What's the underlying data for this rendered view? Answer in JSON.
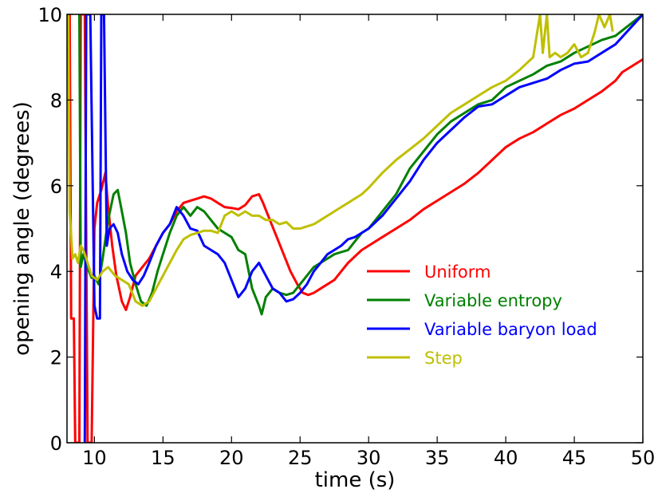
{
  "chart_data": {
    "type": "line",
    "xlabel": "time (s)",
    "ylabel": "opening angle (degrees)",
    "xlim": [
      8,
      50
    ],
    "ylim": [
      0,
      10
    ],
    "xticks": [
      10,
      15,
      20,
      25,
      30,
      35,
      40,
      45,
      50
    ],
    "yticks": [
      0,
      2,
      4,
      6,
      8,
      10
    ],
    "grid": false,
    "legend_position": "center-right",
    "series": [
      {
        "name": "Uniform",
        "color": "#ff0000",
        "points": [
          [
            8.2,
            10
          ],
          [
            8.3,
            2.9
          ],
          [
            8.5,
            2.9
          ],
          [
            8.6,
            0
          ],
          [
            8.9,
            0
          ],
          [
            9.0,
            10
          ],
          [
            9.3,
            10
          ],
          [
            9.5,
            0
          ],
          [
            9.8,
            0
          ],
          [
            10.0,
            5.0
          ],
          [
            10.2,
            5.6
          ],
          [
            10.5,
            5.9
          ],
          [
            10.8,
            6.3
          ],
          [
            11.0,
            5.5
          ],
          [
            11.3,
            4.6
          ],
          [
            11.6,
            3.9
          ],
          [
            12.0,
            3.3
          ],
          [
            12.3,
            3.1
          ],
          [
            12.6,
            3.4
          ],
          [
            13.0,
            3.9
          ],
          [
            13.5,
            4.1
          ],
          [
            14,
            4.3
          ],
          [
            14.5,
            4.6
          ],
          [
            15,
            4.9
          ],
          [
            15.5,
            5.1
          ],
          [
            16,
            5.4
          ],
          [
            16.5,
            5.6
          ],
          [
            17,
            5.65
          ],
          [
            17.5,
            5.7
          ],
          [
            18,
            5.75
          ],
          [
            18.5,
            5.7
          ],
          [
            19,
            5.6
          ],
          [
            19.5,
            5.5
          ],
          [
            20,
            5.48
          ],
          [
            20.5,
            5.45
          ],
          [
            21,
            5.55
          ],
          [
            21.5,
            5.75
          ],
          [
            22,
            5.8
          ],
          [
            22.3,
            5.6
          ],
          [
            22.8,
            5.2
          ],
          [
            23.3,
            4.8
          ],
          [
            23.8,
            4.4
          ],
          [
            24.3,
            4.0
          ],
          [
            24.8,
            3.7
          ],
          [
            25.2,
            3.5
          ],
          [
            25.6,
            3.45
          ],
          [
            26,
            3.5
          ],
          [
            26.5,
            3.6
          ],
          [
            27,
            3.7
          ],
          [
            27.5,
            3.8
          ],
          [
            28,
            4.0
          ],
          [
            28.5,
            4.2
          ],
          [
            29,
            4.35
          ],
          [
            29.5,
            4.5
          ],
          [
            30,
            4.6
          ],
          [
            31,
            4.8
          ],
          [
            32,
            5.0
          ],
          [
            33,
            5.2
          ],
          [
            34,
            5.45
          ],
          [
            35,
            5.65
          ],
          [
            36,
            5.85
          ],
          [
            37,
            6.05
          ],
          [
            38,
            6.3
          ],
          [
            39,
            6.6
          ],
          [
            40,
            6.9
          ],
          [
            41,
            7.1
          ],
          [
            42,
            7.25
          ],
          [
            43,
            7.45
          ],
          [
            44,
            7.65
          ],
          [
            45,
            7.8
          ],
          [
            46,
            8.0
          ],
          [
            47,
            8.2
          ],
          [
            48,
            8.45
          ],
          [
            48.5,
            8.65
          ],
          [
            49,
            8.75
          ],
          [
            50,
            8.95
          ]
        ]
      },
      {
        "name": "Variable entropy",
        "color": "#008000",
        "points": [
          [
            8.9,
            10
          ],
          [
            9.0,
            4.1
          ],
          [
            9.2,
            4.4
          ],
          [
            9.4,
            4.2
          ],
          [
            9.6,
            4.0
          ],
          [
            9.8,
            3.85
          ],
          [
            10.0,
            3.9
          ],
          [
            10.3,
            3.7
          ],
          [
            10.6,
            4.3
          ],
          [
            11.0,
            5.2
          ],
          [
            11.4,
            5.8
          ],
          [
            11.7,
            5.9
          ],
          [
            12.0,
            5.4
          ],
          [
            12.3,
            4.9
          ],
          [
            12.6,
            4.2
          ],
          [
            13.0,
            3.7
          ],
          [
            13.4,
            3.3
          ],
          [
            13.8,
            3.2
          ],
          [
            14.2,
            3.5
          ],
          [
            14.6,
            4.0
          ],
          [
            15,
            4.4
          ],
          [
            15.5,
            4.9
          ],
          [
            16,
            5.3
          ],
          [
            16.5,
            5.5
          ],
          [
            17,
            5.3
          ],
          [
            17.5,
            5.5
          ],
          [
            18,
            5.4
          ],
          [
            18.5,
            5.2
          ],
          [
            19,
            5.0
          ],
          [
            19.5,
            4.9
          ],
          [
            20,
            4.8
          ],
          [
            20.5,
            4.5
          ],
          [
            21,
            4.4
          ],
          [
            21.5,
            3.6
          ],
          [
            22,
            3.2
          ],
          [
            22.2,
            3.0
          ],
          [
            22.5,
            3.4
          ],
          [
            23,
            3.6
          ],
          [
            23.5,
            3.5
          ],
          [
            24,
            3.45
          ],
          [
            24.5,
            3.5
          ],
          [
            25,
            3.7
          ],
          [
            25.5,
            3.9
          ],
          [
            26,
            4.1
          ],
          [
            26.5,
            4.2
          ],
          [
            27,
            4.3
          ],
          [
            27.5,
            4.4
          ],
          [
            28,
            4.45
          ],
          [
            28.5,
            4.5
          ],
          [
            29,
            4.7
          ],
          [
            29.5,
            4.9
          ],
          [
            30,
            5.0
          ],
          [
            31,
            5.4
          ],
          [
            32,
            5.8
          ],
          [
            33,
            6.4
          ],
          [
            34,
            6.8
          ],
          [
            35,
            7.2
          ],
          [
            36,
            7.5
          ],
          [
            37,
            7.7
          ],
          [
            38,
            7.9
          ],
          [
            39,
            8.0
          ],
          [
            40,
            8.3
          ],
          [
            41,
            8.45
          ],
          [
            42,
            8.6
          ],
          [
            43,
            8.8
          ],
          [
            44,
            8.9
          ],
          [
            45,
            9.1
          ],
          [
            46,
            9.25
          ],
          [
            47,
            9.4
          ],
          [
            48,
            9.5
          ],
          [
            49,
            9.75
          ],
          [
            50,
            10
          ]
        ]
      },
      {
        "name": "Variable baryon load",
        "color": "#0000ff",
        "points": [
          [
            9.3,
            0
          ],
          [
            9.4,
            10
          ],
          [
            9.7,
            10
          ],
          [
            9.9,
            5.4
          ],
          [
            10.0,
            3.2
          ],
          [
            10.2,
            2.9
          ],
          [
            10.4,
            2.9
          ],
          [
            10.5,
            10
          ],
          [
            10.7,
            10
          ],
          [
            10.9,
            4.6
          ],
          [
            11.1,
            5.0
          ],
          [
            11.4,
            5.1
          ],
          [
            11.7,
            4.9
          ],
          [
            12.0,
            4.4
          ],
          [
            12.4,
            4.0
          ],
          [
            12.8,
            3.8
          ],
          [
            13.2,
            3.7
          ],
          [
            13.6,
            3.9
          ],
          [
            14,
            4.2
          ],
          [
            14.5,
            4.6
          ],
          [
            15,
            4.9
          ],
          [
            15.5,
            5.1
          ],
          [
            16,
            5.5
          ],
          [
            16.5,
            5.3
          ],
          [
            17,
            5.0
          ],
          [
            17.5,
            4.95
          ],
          [
            18,
            4.6
          ],
          [
            18.5,
            4.5
          ],
          [
            19,
            4.4
          ],
          [
            19.5,
            4.2
          ],
          [
            20,
            3.8
          ],
          [
            20.5,
            3.4
          ],
          [
            21,
            3.6
          ],
          [
            21.5,
            4.0
          ],
          [
            22,
            4.2
          ],
          [
            22.5,
            3.9
          ],
          [
            23,
            3.6
          ],
          [
            23.5,
            3.5
          ],
          [
            24,
            3.3
          ],
          [
            24.5,
            3.35
          ],
          [
            25,
            3.5
          ],
          [
            25.5,
            3.7
          ],
          [
            26,
            4.0
          ],
          [
            26.5,
            4.2
          ],
          [
            27,
            4.4
          ],
          [
            27.5,
            4.5
          ],
          [
            28,
            4.6
          ],
          [
            28.5,
            4.75
          ],
          [
            29,
            4.8
          ],
          [
            29.5,
            4.9
          ],
          [
            30,
            5.0
          ],
          [
            31,
            5.3
          ],
          [
            32,
            5.7
          ],
          [
            33,
            6.1
          ],
          [
            34,
            6.6
          ],
          [
            35,
            7.0
          ],
          [
            36,
            7.3
          ],
          [
            37,
            7.6
          ],
          [
            38,
            7.85
          ],
          [
            39,
            7.9
          ],
          [
            40,
            8.1
          ],
          [
            41,
            8.3
          ],
          [
            42,
            8.4
          ],
          [
            43,
            8.5
          ],
          [
            44,
            8.7
          ],
          [
            45,
            8.85
          ],
          [
            46,
            8.9
          ],
          [
            47,
            9.1
          ],
          [
            48,
            9.3
          ],
          [
            49,
            9.65
          ],
          [
            50,
            10
          ]
        ]
      },
      {
        "name": "Step",
        "color": "#bfbf00",
        "points": [
          [
            8.1,
            10
          ],
          [
            8.2,
            5.4
          ],
          [
            8.4,
            4.3
          ],
          [
            8.6,
            4.4
          ],
          [
            8.8,
            4.2
          ],
          [
            9.0,
            4.6
          ],
          [
            9.2,
            4.5
          ],
          [
            9.5,
            4.2
          ],
          [
            9.8,
            3.9
          ],
          [
            10.2,
            3.8
          ],
          [
            10.6,
            4.0
          ],
          [
            11.0,
            4.1
          ],
          [
            11.5,
            3.9
          ],
          [
            12.0,
            3.8
          ],
          [
            12.5,
            3.7
          ],
          [
            13.0,
            3.3
          ],
          [
            13.5,
            3.2
          ],
          [
            14.0,
            3.3
          ],
          [
            14.5,
            3.6
          ],
          [
            15.0,
            3.9
          ],
          [
            15.5,
            4.2
          ],
          [
            16.0,
            4.5
          ],
          [
            16.5,
            4.75
          ],
          [
            17.0,
            4.85
          ],
          [
            17.5,
            4.9
          ],
          [
            18,
            4.95
          ],
          [
            18.5,
            4.95
          ],
          [
            19,
            4.9
          ],
          [
            19.5,
            5.3
          ],
          [
            20,
            5.4
          ],
          [
            20.5,
            5.3
          ],
          [
            21,
            5.4
          ],
          [
            21.5,
            5.3
          ],
          [
            22,
            5.3
          ],
          [
            22.5,
            5.2
          ],
          [
            23,
            5.2
          ],
          [
            23.5,
            5.1
          ],
          [
            24,
            5.15
          ],
          [
            24.5,
            5.0
          ],
          [
            25,
            5.0
          ],
          [
            25.5,
            5.05
          ],
          [
            26,
            5.1
          ],
          [
            26.5,
            5.2
          ],
          [
            27,
            5.3
          ],
          [
            27.5,
            5.4
          ],
          [
            28,
            5.5
          ],
          [
            28.5,
            5.6
          ],
          [
            29,
            5.7
          ],
          [
            29.5,
            5.8
          ],
          [
            30,
            5.95
          ],
          [
            31,
            6.3
          ],
          [
            32,
            6.6
          ],
          [
            33,
            6.85
          ],
          [
            34,
            7.1
          ],
          [
            35,
            7.4
          ],
          [
            36,
            7.7
          ],
          [
            37,
            7.9
          ],
          [
            38,
            8.1
          ],
          [
            39,
            8.3
          ],
          [
            40,
            8.45
          ],
          [
            41,
            8.7
          ],
          [
            42,
            9.0
          ],
          [
            42.5,
            10
          ],
          [
            42.7,
            9.1
          ],
          [
            43,
            10
          ],
          [
            43.2,
            9.0
          ],
          [
            43.6,
            9.1
          ],
          [
            44,
            9.0
          ],
          [
            44.5,
            9.1
          ],
          [
            45,
            9.3
          ],
          [
            45.5,
            9.0
          ],
          [
            46,
            9.1
          ],
          [
            46.5,
            9.6
          ],
          [
            46.8,
            10
          ],
          [
            47.2,
            9.7
          ],
          [
            47.6,
            10
          ],
          [
            47.8,
            9.6
          ]
        ]
      }
    ]
  }
}
